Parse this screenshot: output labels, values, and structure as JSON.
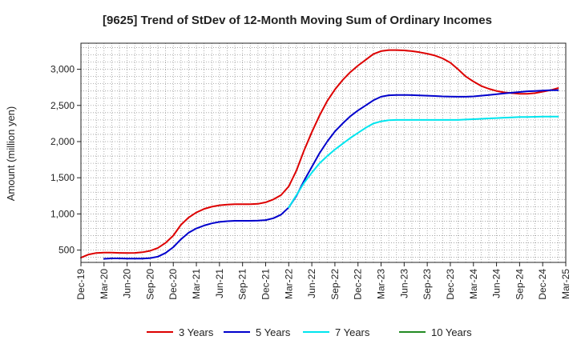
{
  "chart_data": {
    "type": "line",
    "title": "[9625]  Trend of StDev of 12-Month Moving Sum of Ordinary Incomes",
    "xlabel": "",
    "ylabel": "Amount (million yen)",
    "ylim": [
      330,
      3360
    ],
    "y_ticks": [
      500,
      1000,
      1500,
      2000,
      2500,
      3000
    ],
    "y_tick_labels": [
      "500",
      "1,000",
      "1,500",
      "2,000",
      "2,500",
      "3,000"
    ],
    "x_ticks": [
      "Dec-19",
      "Mar-20",
      "Jun-20",
      "Sep-20",
      "Dec-20",
      "Mar-21",
      "Jun-21",
      "Sep-21",
      "Dec-21",
      "Mar-22",
      "Jun-22",
      "Sep-22",
      "Dec-22",
      "Mar-23",
      "Jun-23",
      "Sep-23",
      "Dec-23",
      "Mar-24",
      "Jun-24",
      "Sep-24",
      "Dec-24",
      "Mar-25"
    ],
    "x_start_month": "Dec-19",
    "grid": true,
    "legend_position": "bottom",
    "series": [
      {
        "name": "3 Years",
        "color": "#dd0000",
        "start_index": 0,
        "values": [
          395,
          440,
          460,
          465,
          465,
          462,
          460,
          462,
          470,
          490,
          530,
          600,
          700,
          850,
          950,
          1020,
          1070,
          1100,
          1120,
          1130,
          1135,
          1135,
          1135,
          1140,
          1160,
          1200,
          1260,
          1380,
          1600,
          1880,
          2130,
          2360,
          2560,
          2720,
          2850,
          2960,
          3050,
          3130,
          3210,
          3250,
          3265,
          3265,
          3260,
          3250,
          3235,
          3215,
          3190,
          3150,
          3090,
          3000,
          2900,
          2830,
          2770,
          2730,
          2700,
          2680,
          2670,
          2660,
          2660,
          2670,
          2690,
          2710,
          2740
        ]
      },
      {
        "name": "5 Years",
        "color": "#0000cc",
        "start_index": 3,
        "values": [
          380,
          385,
          385,
          383,
          382,
          383,
          390,
          410,
          460,
          540,
          650,
          740,
          800,
          840,
          870,
          890,
          900,
          905,
          905,
          905,
          908,
          915,
          940,
          990,
          1090,
          1250,
          1460,
          1650,
          1840,
          2000,
          2140,
          2250,
          2350,
          2430,
          2500,
          2570,
          2620,
          2640,
          2645,
          2645,
          2642,
          2638,
          2635,
          2630,
          2625,
          2622,
          2620,
          2620,
          2625,
          2635,
          2645,
          2655,
          2665,
          2675,
          2685,
          2695,
          2700,
          2705,
          2710,
          2710
        ]
      },
      {
        "name": "7 Years",
        "color": "#00e5ee",
        "start_index": 27,
        "values": [
          1090,
          1260,
          1430,
          1570,
          1700,
          1800,
          1890,
          1970,
          2050,
          2120,
          2190,
          2250,
          2280,
          2295,
          2300,
          2300,
          2300,
          2300,
          2300,
          2300,
          2300,
          2300,
          2300,
          2305,
          2310,
          2315,
          2320,
          2325,
          2330,
          2335,
          2340,
          2340,
          2343,
          2345,
          2345,
          2345
        ]
      },
      {
        "name": "10 Years",
        "color": "#228b22",
        "start_index": 0,
        "values": []
      }
    ]
  }
}
